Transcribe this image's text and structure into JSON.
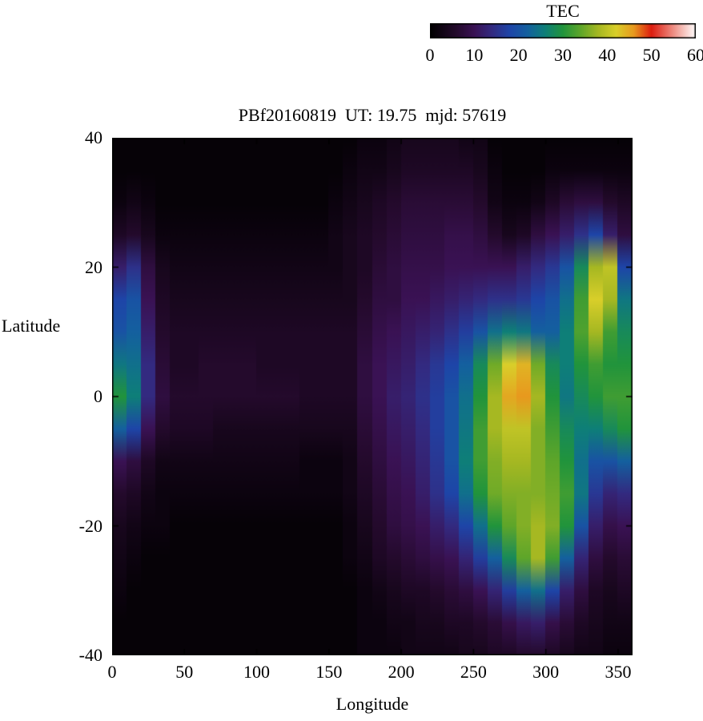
{
  "chart_data": {
    "type": "heatmap",
    "title": "PBf20160819  UT: 19.75  mjd: 57619",
    "xlabel": "Longitude",
    "ylabel": "Latitude",
    "x_range": [
      0,
      360
    ],
    "y_range": [
      -40,
      40
    ],
    "x_ticks": [
      0,
      50,
      100,
      150,
      200,
      250,
      300,
      350
    ],
    "y_ticks": [
      -40,
      -20,
      0,
      20,
      40
    ],
    "grid": false,
    "colorbar": {
      "label": "TEC",
      "range": [
        0,
        60
      ],
      "ticks": [
        0,
        10,
        20,
        30,
        40,
        50,
        60
      ],
      "position": "top-right-horizontal"
    },
    "palette": [
      {
        "v": 0,
        "c": "#000000"
      },
      {
        "v": 6,
        "c": "#240a2c"
      },
      {
        "v": 10,
        "c": "#3a1254"
      },
      {
        "v": 14,
        "c": "#332a80"
      },
      {
        "v": 18,
        "c": "#1e45a8"
      },
      {
        "v": 22,
        "c": "#14609f"
      },
      {
        "v": 26,
        "c": "#0e7f78"
      },
      {
        "v": 30,
        "c": "#21943c"
      },
      {
        "v": 34,
        "c": "#5ea62a"
      },
      {
        "v": 38,
        "c": "#a6b822"
      },
      {
        "v": 42,
        "c": "#d9cf2a"
      },
      {
        "v": 46,
        "c": "#e8991e"
      },
      {
        "v": 50,
        "c": "#dd1d10"
      },
      {
        "v": 55,
        "c": "#ee8f85"
      },
      {
        "v": 60,
        "c": "#ffffff"
      }
    ],
    "lon": [
      0,
      10,
      20,
      30,
      40,
      50,
      60,
      70,
      80,
      90,
      100,
      110,
      120,
      130,
      140,
      150,
      160,
      170,
      180,
      190,
      200,
      210,
      220,
      230,
      240,
      250,
      260,
      270,
      280,
      290,
      300,
      310,
      320,
      330,
      340,
      350
    ],
    "lat": [
      40,
      35,
      30,
      25,
      20,
      15,
      10,
      5,
      0,
      -5,
      -10,
      -15,
      -20,
      -25,
      -30,
      -35,
      -40
    ],
    "values": [
      [
        1,
        1,
        1,
        1,
        1,
        1,
        1,
        1,
        1,
        1,
        1,
        1,
        1,
        1,
        1,
        1,
        1,
        2,
        2,
        3,
        4,
        4,
        4,
        4,
        3,
        3,
        1,
        1,
        1,
        1,
        1,
        1,
        1,
        1,
        1,
        1
      ],
      [
        1,
        1,
        1,
        1,
        1,
        1,
        1,
        1,
        1,
        1,
        1,
        1,
        1,
        1,
        1,
        1,
        2,
        3,
        3,
        4,
        5,
        5,
        5,
        5,
        5,
        4,
        2,
        1,
        1,
        1,
        2,
        2,
        2,
        2,
        2,
        2
      ],
      [
        2,
        3,
        2,
        1,
        1,
        1,
        1,
        1,
        1,
        1,
        1,
        1,
        1,
        1,
        1,
        2,
        3,
        4,
        5,
        6,
        7,
        7,
        7,
        7,
        7,
        6,
        3,
        2,
        2,
        3,
        5,
        7,
        8,
        8,
        6,
        5
      ],
      [
        5,
        6,
        4,
        2,
        2,
        2,
        2,
        2,
        2,
        2,
        2,
        2,
        2,
        2,
        2,
        3,
        4,
        5,
        6,
        7,
        8,
        8,
        8,
        9,
        9,
        8,
        6,
        4,
        5,
        8,
        10,
        12,
        15,
        18,
        12,
        8
      ],
      [
        12,
        15,
        8,
        4,
        3,
        3,
        3,
        3,
        3,
        3,
        3,
        3,
        3,
        3,
        3,
        3,
        4,
        5,
        7,
        8,
        9,
        9,
        9,
        10,
        10,
        10,
        10,
        10,
        12,
        14,
        16,
        20,
        28,
        38,
        40,
        18
      ],
      [
        18,
        20,
        10,
        5,
        4,
        4,
        4,
        4,
        4,
        4,
        4,
        4,
        4,
        4,
        4,
        4,
        4,
        6,
        8,
        8,
        10,
        10,
        11,
        12,
        13,
        14,
        15,
        15,
        16,
        18,
        20,
        24,
        32,
        42,
        38,
        25
      ],
      [
        20,
        22,
        12,
        6,
        5,
        5,
        5,
        5,
        5,
        5,
        5,
        5,
        5,
        5,
        5,
        5,
        5,
        7,
        9,
        10,
        11,
        12,
        13,
        15,
        17,
        20,
        24,
        26,
        25,
        22,
        22,
        26,
        33,
        38,
        32,
        28
      ],
      [
        25,
        24,
        14,
        7,
        5,
        5,
        6,
        6,
        6,
        6,
        5,
        5,
        5,
        5,
        5,
        5,
        5,
        8,
        10,
        11,
        12,
        14,
        16,
        18,
        22,
        28,
        35,
        42,
        44,
        35,
        28,
        26,
        30,
        32,
        30,
        30
      ],
      [
        30,
        26,
        14,
        8,
        6,
        6,
        6,
        6,
        6,
        6,
        6,
        6,
        6,
        5,
        5,
        5,
        5,
        8,
        10,
        12,
        13,
        15,
        17,
        20,
        24,
        30,
        38,
        45,
        46,
        38,
        30,
        25,
        28,
        30,
        32,
        32
      ],
      [
        22,
        18,
        10,
        6,
        5,
        5,
        5,
        4,
        4,
        4,
        4,
        4,
        4,
        4,
        4,
        4,
        4,
        7,
        9,
        11,
        12,
        14,
        17,
        20,
        25,
        32,
        38,
        40,
        40,
        36,
        32,
        28,
        26,
        26,
        28,
        30
      ],
      [
        10,
        8,
        5,
        3,
        3,
        3,
        3,
        3,
        3,
        3,
        3,
        3,
        3,
        2,
        2,
        2,
        3,
        6,
        8,
        10,
        11,
        13,
        16,
        20,
        26,
        32,
        36,
        38,
        38,
        36,
        34,
        30,
        24,
        20,
        20,
        22
      ],
      [
        6,
        5,
        3,
        2,
        2,
        2,
        2,
        2,
        2,
        2,
        2,
        2,
        2,
        2,
        2,
        2,
        3,
        5,
        7,
        9,
        10,
        12,
        15,
        18,
        24,
        30,
        35,
        36,
        36,
        36,
        35,
        32,
        25,
        16,
        13,
        14
      ],
      [
        4,
        3,
        2,
        2,
        1,
        1,
        1,
        1,
        1,
        1,
        1,
        1,
        1,
        1,
        1,
        1,
        2,
        4,
        6,
        8,
        9,
        10,
        12,
        14,
        18,
        24,
        30,
        34,
        36,
        38,
        36,
        30,
        20,
        12,
        9,
        10
      ],
      [
        3,
        2,
        1,
        1,
        1,
        1,
        1,
        1,
        1,
        1,
        1,
        1,
        1,
        1,
        1,
        1,
        2,
        3,
        5,
        6,
        7,
        8,
        9,
        10,
        13,
        17,
        22,
        28,
        34,
        38,
        32,
        22,
        13,
        8,
        6,
        7
      ],
      [
        2,
        1,
        1,
        1,
        1,
        1,
        1,
        1,
        1,
        1,
        1,
        1,
        1,
        1,
        1,
        1,
        1,
        2,
        3,
        4,
        5,
        5,
        6,
        7,
        8,
        10,
        13,
        17,
        22,
        24,
        18,
        12,
        8,
        5,
        4,
        5
      ],
      [
        1,
        1,
        1,
        1,
        1,
        1,
        1,
        1,
        1,
        1,
        1,
        1,
        1,
        1,
        1,
        1,
        1,
        2,
        2,
        3,
        3,
        4,
        4,
        5,
        5,
        6,
        7,
        9,
        11,
        12,
        9,
        7,
        5,
        4,
        3,
        3
      ],
      [
        1,
        1,
        1,
        1,
        1,
        1,
        1,
        1,
        1,
        1,
        1,
        1,
        1,
        1,
        1,
        1,
        1,
        2,
        2,
        2,
        3,
        3,
        3,
        3,
        4,
        4,
        5,
        5,
        6,
        6,
        5,
        4,
        3,
        3,
        2,
        2
      ]
    ]
  }
}
